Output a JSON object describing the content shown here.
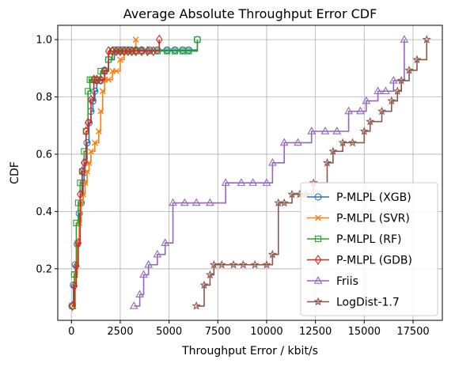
{
  "chart_data": {
    "type": "line",
    "title": "Average Absolute Throughput Error CDF",
    "xlabel": "Throughput Error / kbit/s",
    "ylabel": "CDF",
    "xlim": [
      -700,
      19000
    ],
    "ylim": [
      0.02,
      1.05
    ],
    "xticks": [
      0,
      2500,
      5000,
      7500,
      10000,
      12500,
      15000,
      17500
    ],
    "xtick_labels": [
      "0",
      "2500",
      "5000",
      "7500",
      "10000",
      "12500",
      "15000",
      "17500"
    ],
    "yticks": [
      0.2,
      0.4,
      0.6,
      0.8,
      1.0
    ],
    "ytick_labels": [
      "0.2",
      "0.4",
      "0.6",
      "0.8",
      "1.0"
    ],
    "grid": true,
    "legend_position": "lower-right",
    "series": [
      {
        "name": "P-MLPL (XGB)",
        "color": "#1f77b4",
        "marker": "circle",
        "x": [
          30,
          100,
          200,
          300,
          400,
          500,
          600,
          650,
          700,
          800,
          900,
          1000,
          1100,
          1200,
          1300,
          1500,
          1700,
          1900,
          2200,
          2400,
          2600,
          2800,
          3000,
          3300,
          3600,
          4000,
          4400,
          4900,
          5300,
          5700,
          6000,
          6450
        ],
        "y": [
          0.07,
          0.143,
          0.214,
          0.286,
          0.393,
          0.43,
          0.5,
          0.536,
          0.57,
          0.64,
          0.71,
          0.75,
          0.786,
          0.82,
          0.857,
          0.857,
          0.893,
          0.93,
          0.964,
          0.964,
          0.964,
          0.964,
          0.964,
          0.964,
          0.964,
          0.964,
          0.964,
          0.964,
          0.964,
          0.964,
          0.964,
          1.0
        ]
      },
      {
        "name": "P-MLPL (SVR)",
        "color": "#ff7f0e",
        "marker": "x",
        "x": [
          100,
          200,
          300,
          400,
          500,
          600,
          700,
          800,
          900,
          1000,
          1200,
          1400,
          1500,
          1600,
          1700,
          1900,
          2100,
          2300,
          2500,
          2700,
          2900,
          3100,
          3300
        ],
        "y": [
          0.07,
          0.18,
          0.29,
          0.36,
          0.43,
          0.46,
          0.5,
          0.54,
          0.57,
          0.61,
          0.64,
          0.68,
          0.75,
          0.82,
          0.86,
          0.86,
          0.89,
          0.89,
          0.93,
          0.96,
          0.96,
          0.96,
          1.0
        ]
      },
      {
        "name": "P-MLPL (RF)",
        "color": "#2ca02c",
        "marker": "square",
        "x": [
          50,
          150,
          250,
          350,
          450,
          550,
          650,
          750,
          850,
          950,
          1050,
          1150,
          1300,
          1500,
          1700,
          1900,
          2100,
          2300,
          2500,
          2700,
          2900,
          3100,
          3300,
          3600,
          4000,
          4400,
          4900,
          5300,
          5700,
          6000,
          6450
        ],
        "y": [
          0.07,
          0.18,
          0.36,
          0.43,
          0.5,
          0.54,
          0.61,
          0.68,
          0.82,
          0.86,
          0.86,
          0.86,
          0.86,
          0.89,
          0.89,
          0.93,
          0.96,
          0.96,
          0.96,
          0.96,
          0.96,
          0.96,
          0.96,
          0.96,
          0.96,
          0.96,
          0.96,
          0.96,
          0.96,
          0.96,
          1.0
        ]
      },
      {
        "name": "P-MLPL (GDB)",
        "color": "#d62728",
        "marker": "diamond",
        "x": [
          50,
          150,
          250,
          350,
          450,
          550,
          650,
          750,
          850,
          1000,
          1150,
          1300,
          1500,
          1700,
          1900,
          2100,
          2300,
          2500,
          2700,
          2900,
          3100,
          3300,
          3600,
          3900,
          4200,
          4500
        ],
        "y": [
          0.07,
          0.14,
          0.21,
          0.29,
          0.46,
          0.54,
          0.57,
          0.68,
          0.71,
          0.79,
          0.86,
          0.86,
          0.86,
          0.89,
          0.96,
          0.96,
          0.96,
          0.96,
          0.96,
          0.96,
          0.96,
          0.96,
          0.96,
          0.96,
          0.96,
          1.0
        ]
      },
      {
        "name": "Friis",
        "color": "#9467bd",
        "marker": "triangle",
        "x": [
          3200,
          3500,
          3700,
          3950,
          4400,
          4800,
          5200,
          5800,
          6400,
          7100,
          7900,
          8700,
          9300,
          10000,
          10300,
          10900,
          11600,
          12300,
          13000,
          13600,
          14200,
          14800,
          15100,
          15700,
          16100,
          16500,
          17050
        ],
        "y": [
          0.07,
          0.11,
          0.179,
          0.214,
          0.25,
          0.29,
          0.43,
          0.43,
          0.43,
          0.43,
          0.5,
          0.5,
          0.5,
          0.5,
          0.57,
          0.64,
          0.64,
          0.68,
          0.68,
          0.68,
          0.75,
          0.75,
          0.786,
          0.82,
          0.82,
          0.857,
          1.0
        ]
      },
      {
        "name": "LogDist-1.7",
        "color": "#8c564b",
        "marker": "star",
        "x": [
          6400,
          6800,
          7100,
          7300,
          7700,
          8300,
          8800,
          9400,
          10000,
          10300,
          10600,
          10900,
          11300,
          11700,
          12000,
          12400,
          13100,
          13400,
          13900,
          14400,
          15000,
          15300,
          15900,
          16400,
          16700,
          16900,
          17300,
          17700,
          18200
        ],
        "y": [
          0.07,
          0.143,
          0.179,
          0.214,
          0.214,
          0.214,
          0.214,
          0.214,
          0.214,
          0.25,
          0.43,
          0.43,
          0.46,
          0.46,
          0.46,
          0.5,
          0.57,
          0.61,
          0.64,
          0.64,
          0.68,
          0.714,
          0.75,
          0.786,
          0.82,
          0.857,
          0.893,
          0.93,
          1.0
        ]
      }
    ]
  }
}
